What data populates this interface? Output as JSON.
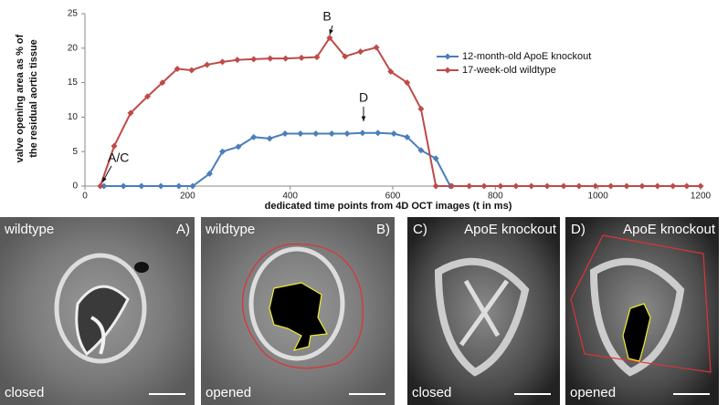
{
  "chart_data": {
    "type": "line",
    "ylabel": [
      "valve opening area as % of",
      "the residual aortic tissue"
    ],
    "xlabel": "dedicated time points from 4D OCT images (t in ms)",
    "xlim": [
      0,
      1200
    ],
    "xticks": [
      0,
      200,
      400,
      600,
      800,
      1000,
      1200
    ],
    "ylim": [
      0,
      25
    ],
    "yticks": [
      0,
      5,
      10,
      15,
      20,
      25
    ],
    "grid": false,
    "legend": "upper-right",
    "series": [
      {
        "name": "12-month-old ApoE knockout",
        "color": "#4a7ebb",
        "x": [
          37,
          75,
          110,
          148,
          183,
          210,
          243,
          268,
          299,
          329,
          360,
          390,
          420,
          450,
          481,
          511,
          541,
          571,
          602,
          628,
          655,
          684,
          712
        ],
        "values": [
          0,
          0,
          0,
          0,
          0,
          0,
          1.8,
          5.0,
          5.7,
          7.1,
          6.9,
          7.6,
          7.6,
          7.6,
          7.6,
          7.6,
          7.7,
          7.7,
          7.6,
          7.1,
          5.2,
          4.0,
          0
        ]
      },
      {
        "name": "17-week-old wildtype",
        "color": "#be4b48",
        "x": [
          30,
          57,
          89,
          122,
          151,
          180,
          208,
          238,
          268,
          297,
          329,
          361,
          391,
          422,
          452,
          477,
          507,
          537,
          568,
          596,
          628,
          655,
          684,
          715,
          749,
          778,
          810,
          840,
          870,
          901,
          933,
          963,
          995,
          1025,
          1056,
          1086,
          1116,
          1146,
          1173,
          1200
        ],
        "values": [
          0,
          5.8,
          10.6,
          13,
          15,
          17,
          16.8,
          17.6,
          18,
          18.3,
          18.4,
          18.5,
          18.5,
          18.6,
          18.7,
          21.5,
          18.8,
          19.5,
          20.1,
          16.6,
          15,
          11.2,
          0,
          0,
          0,
          0,
          0,
          0,
          0,
          0,
          0,
          0,
          0,
          0,
          0,
          0,
          0,
          0,
          0,
          0
        ]
      }
    ],
    "annotations": [
      "A/C",
      "B",
      "D"
    ]
  },
  "panels": [
    {
      "genotype": "wildtype",
      "letter": "A)",
      "state": "closed"
    },
    {
      "genotype": "wildtype",
      "letter": "B)",
      "state": "opened"
    },
    {
      "letter": "C)",
      "genotype": "ApoE knockout",
      "state": "closed"
    },
    {
      "letter": "D)",
      "genotype": "ApoE knockout",
      "state": "opened"
    }
  ]
}
